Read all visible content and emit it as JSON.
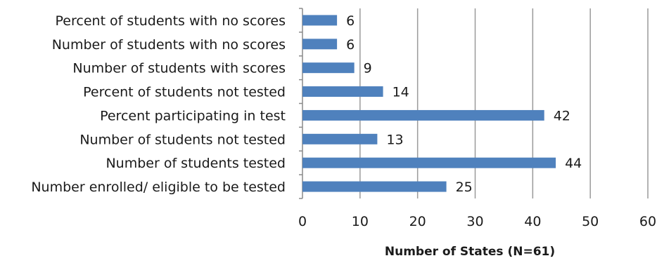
{
  "chart_data": {
    "type": "bar",
    "orientation": "horizontal",
    "categories": [
      "Percent of students with no scores",
      "Number of students with no scores ",
      "Number of students with scores",
      "Percent of students not tested",
      "Percent participating in test",
      "Number of students not tested",
      "Number of students tested",
      "Number enrolled/ eligible to be tested"
    ],
    "values": [
      6,
      6,
      9,
      14,
      42,
      13,
      44,
      25
    ],
    "xlabel": "Number of States (N=61)",
    "xlim": [
      0,
      60
    ],
    "xticks": [
      0,
      10,
      20,
      30,
      40,
      50,
      60
    ],
    "grid": "vertical",
    "legend": "none",
    "bar_color": "#4f81bd"
  }
}
